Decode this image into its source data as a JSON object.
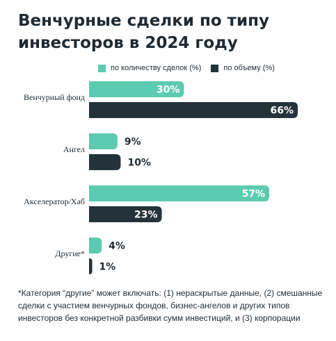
{
  "chart_data": {
    "type": "bar",
    "orientation": "horizontal",
    "title": "Венчурные сделки по типу инвесторов в 2024 году",
    "categories": [
      "Венчурный фонд",
      "Ангел",
      "Акселератор/Хаб",
      "Другие*"
    ],
    "series": [
      {
        "name": "по количеству сделок (%)",
        "values": [
          30,
          9,
          57,
          4
        ],
        "color": "#5ccbb0"
      },
      {
        "name": "по объему (%)",
        "values": [
          66,
          10,
          23,
          1
        ],
        "color": "#243239"
      }
    ],
    "value_suffix": "%",
    "xlim": [
      0,
      66
    ],
    "grid": false,
    "legend_position": "top"
  },
  "footnote": "*Категория “другие” может включать: (1) нераскрытые данные, (2) смешанные сделки с участием венчурных фондов, бизнес-ангелов и других типов инвесторов без конкретной разбивки сумм инвестиций, и (3) корпорации"
}
